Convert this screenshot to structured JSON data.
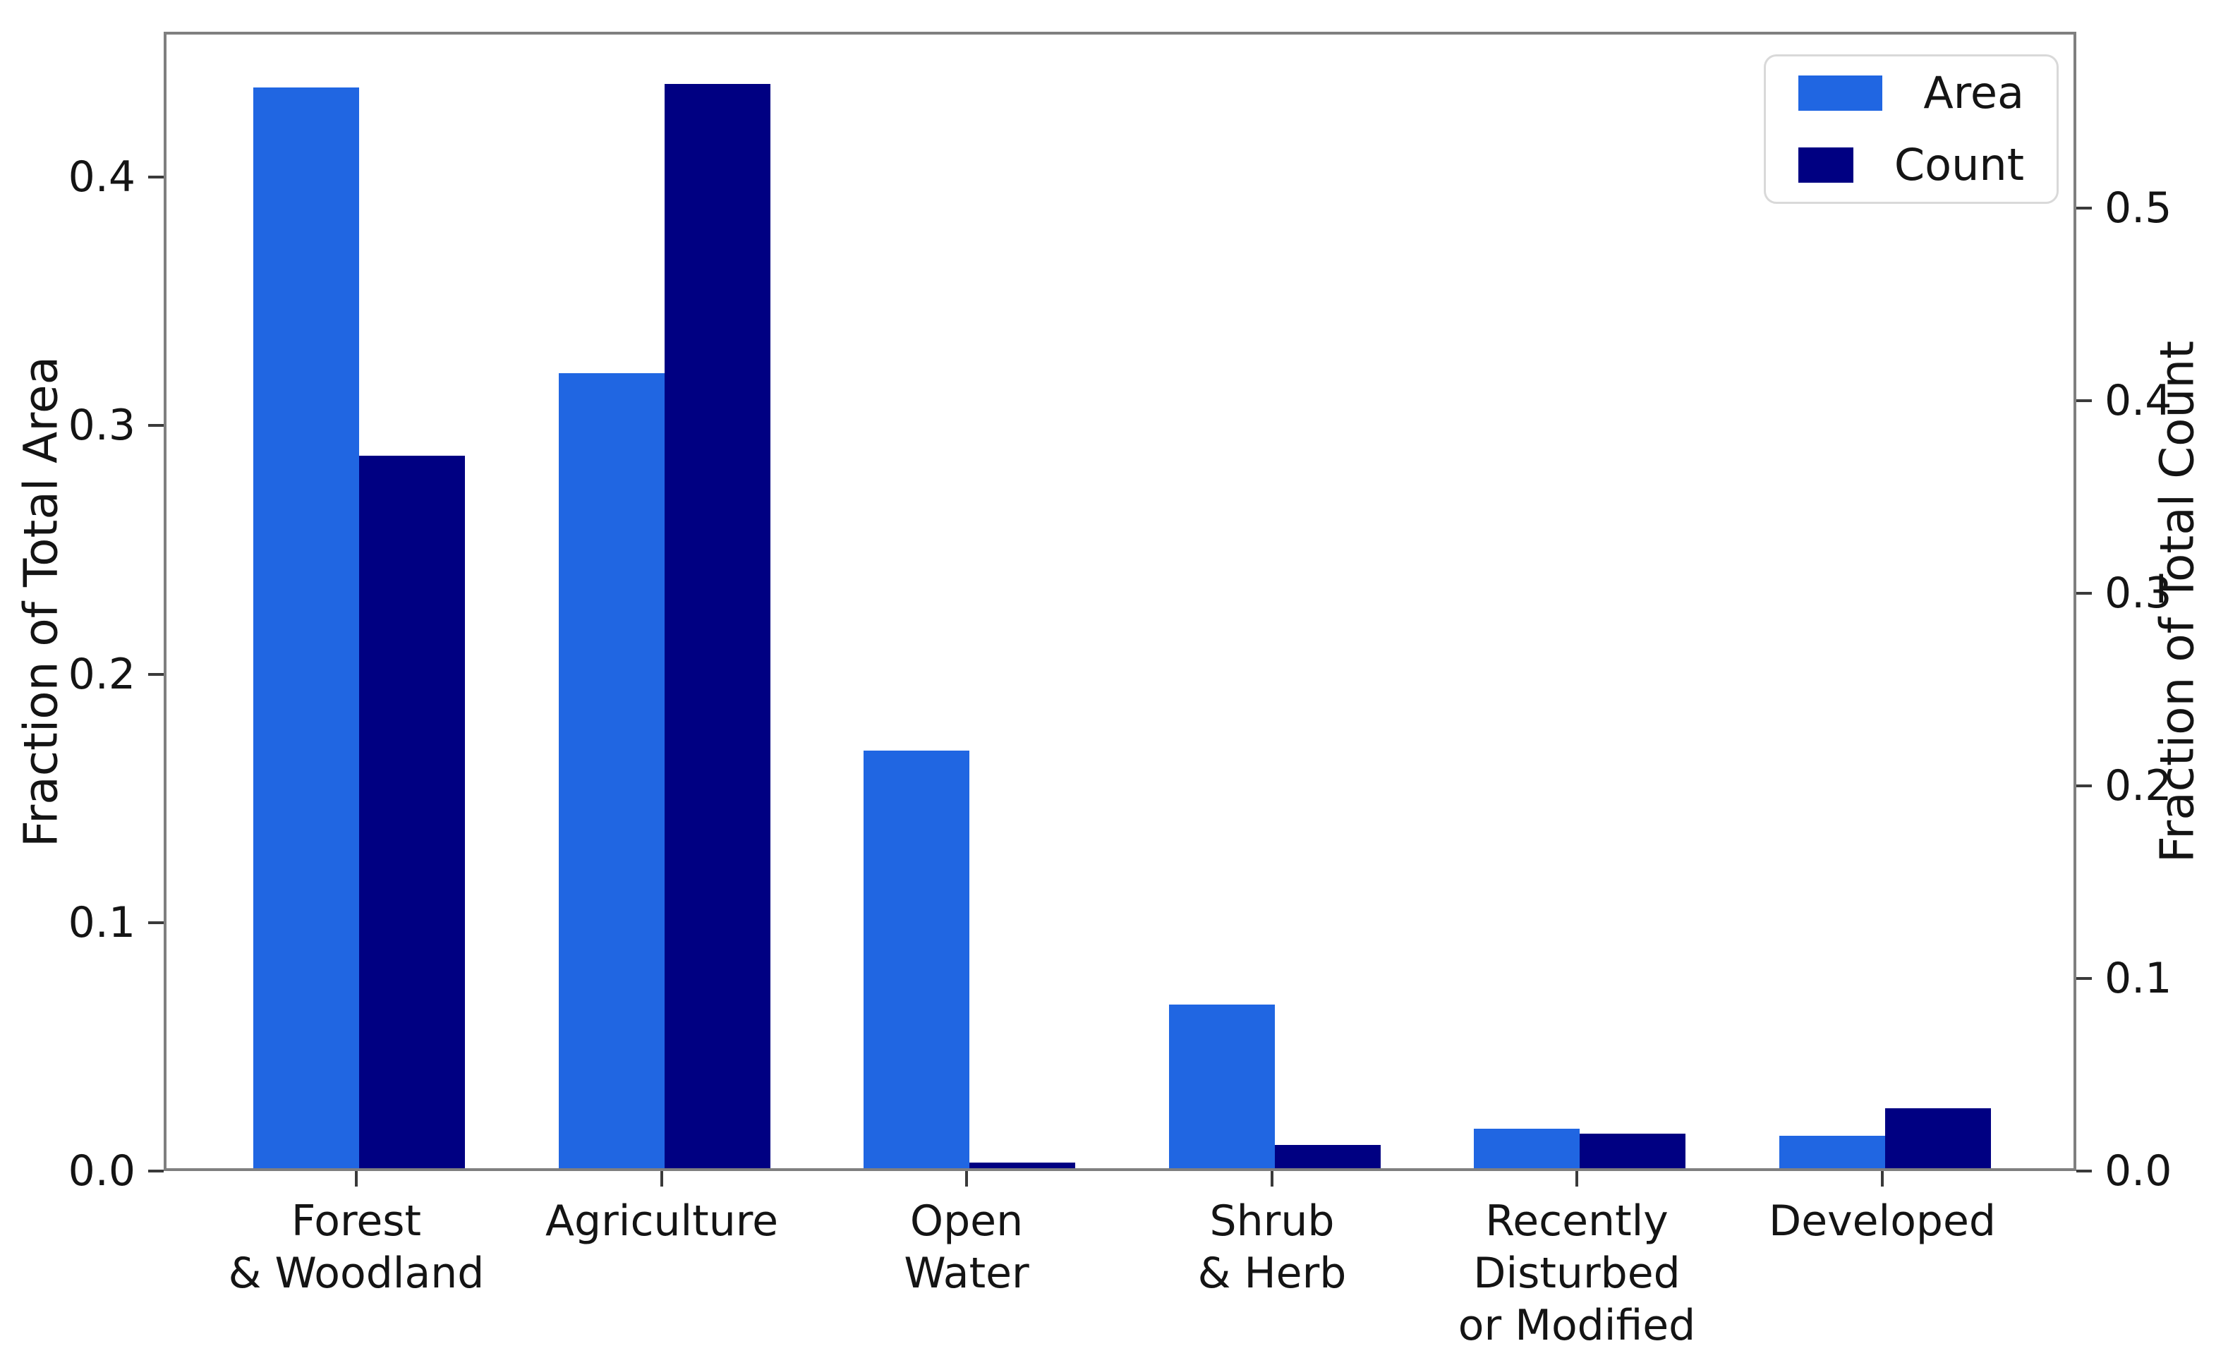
{
  "chart_data": {
    "type": "bar",
    "categories": [
      "Forest\n& Woodland",
      "Agriculture",
      "Open\nWater",
      "Shrub\n& Herb",
      "Recently\nDisturbed\nor Modified",
      "Developed"
    ],
    "series": [
      {
        "name": "Area",
        "axis": "left",
        "color": "#2066e2",
        "values": [
          0.435,
          0.32,
          0.168,
          0.066,
          0.016,
          0.013
        ]
      },
      {
        "name": "Count",
        "axis": "right",
        "color": "#000082",
        "values": [
          0.37,
          0.563,
          0.003,
          0.012,
          0.018,
          0.031
        ]
      }
    ],
    "left_axis": {
      "label": "Fraction of Total Area",
      "ticks": [
        0.0,
        0.1,
        0.2,
        0.3,
        0.4
      ],
      "tick_labels": [
        "0.0",
        "0.1",
        "0.2",
        "0.3",
        "0.4"
      ],
      "range": [
        0,
        0.4585
      ]
    },
    "right_axis": {
      "label": "Fraction of Total Count",
      "ticks": [
        0.0,
        0.1,
        0.2,
        0.3,
        0.4,
        0.5
      ],
      "tick_labels": [
        "0.0",
        "0.1",
        "0.2",
        "0.3",
        "0.4",
        "0.5"
      ],
      "range": [
        0,
        0.5916
      ]
    },
    "legend": {
      "position": "upper right",
      "entries": [
        "Area",
        "Count"
      ]
    },
    "grid": false,
    "title": "",
    "xlabel": ""
  },
  "legend_colors": {
    "area": "#2066e2",
    "count": "#000082"
  }
}
